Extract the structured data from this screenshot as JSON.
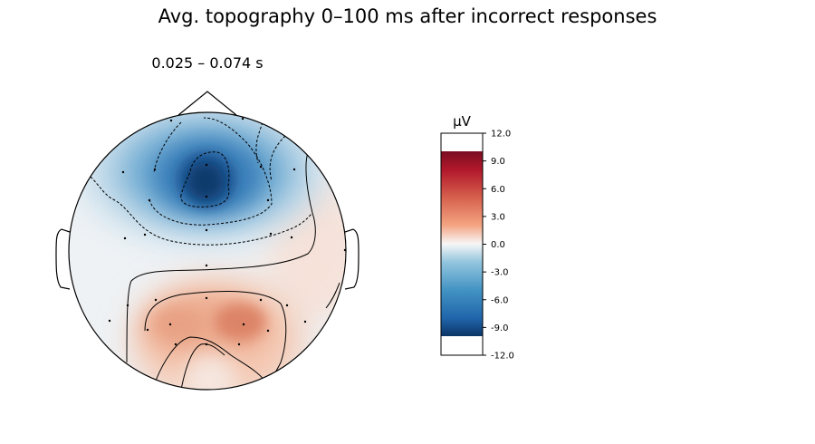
{
  "title": "Avg. topography 0–100 ms after incorrect responses",
  "chart_data": {
    "type": "heatmap",
    "subtitle": "0.025 – 0.074 s",
    "colorbar": {
      "unit": "µV",
      "ticks": [
        12.0,
        9.0,
        6.0,
        3.0,
        0.0,
        -3.0,
        -6.0,
        -9.0,
        -12.0
      ],
      "tick_labels": [
        "12.0",
        "9.0",
        "6.0",
        "3.0",
        "0.0",
        "-3.0",
        "-6.0",
        "-9.0",
        "-12.0"
      ],
      "range": [
        -12.0,
        12.0
      ],
      "color_range": [
        -10.0,
        10.0
      ],
      "colormap": "RdBu_r",
      "colors": {
        "min": "#0b3566",
        "mid": "#f7f6f6",
        "max": "#7a0c21"
      }
    },
    "features": {
      "negative_peak": {
        "location": "frontal-central",
        "approx_value": -10.0
      },
      "positive_peak": {
        "location": "centro-parietal",
        "approx_value": 5.0
      }
    },
    "contours": {
      "negative_style": "dashed",
      "positive_style": "solid"
    },
    "sensors_shown": true
  }
}
